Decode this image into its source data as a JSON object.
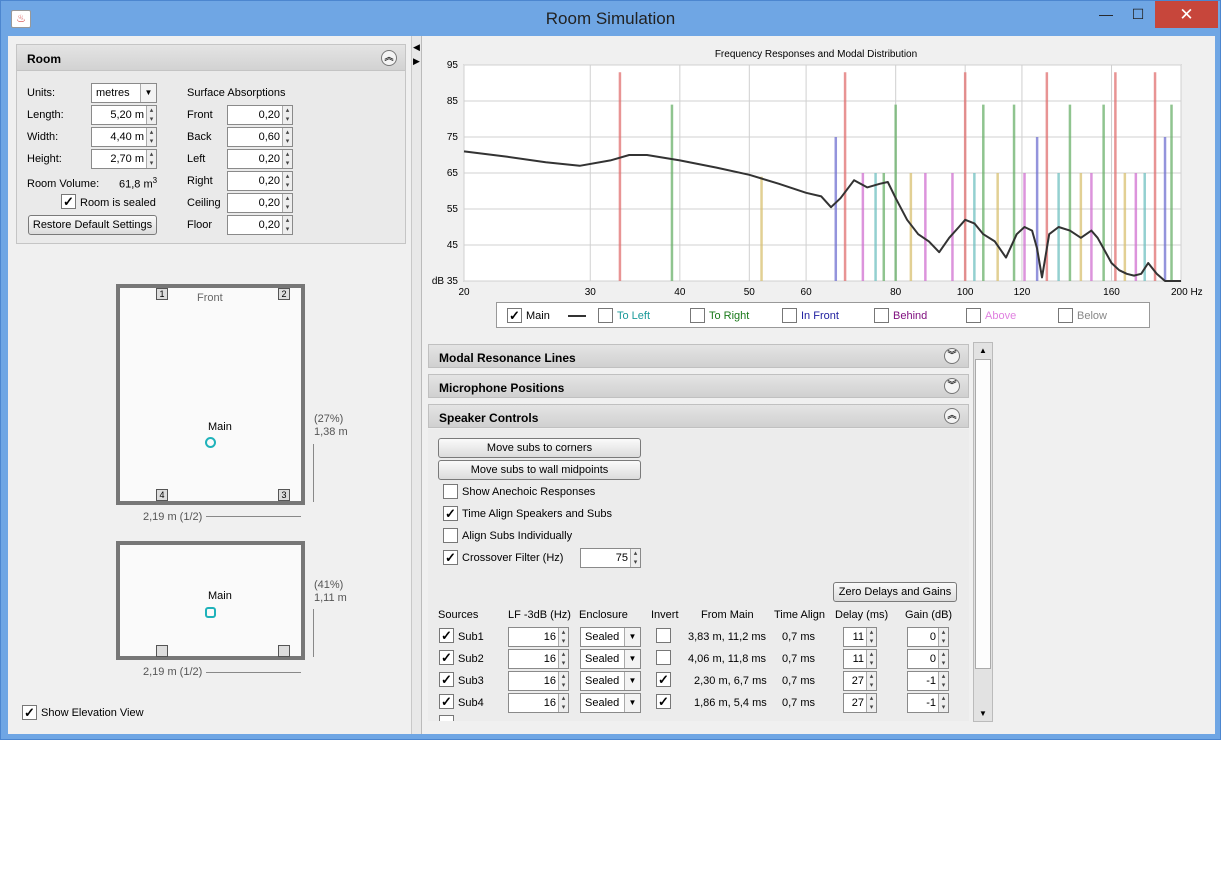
{
  "window": {
    "title": "Room Simulation",
    "minimize": "—",
    "maximize": "☐",
    "close": "✕"
  },
  "room_panel": {
    "title": "Room",
    "units_label": "Units:",
    "units_value": "metres",
    "length_label": "Length:",
    "length_value": "5,20 m",
    "width_label": "Width:",
    "width_value": "4,40 m",
    "height_label": "Height:",
    "height_value": "2,70 m",
    "volume_label": "Room Volume:",
    "volume_value": "61,8 m",
    "volume_sup": "3",
    "sealed_label": "Room is sealed",
    "sealed_checked": true,
    "restore_button": "Restore Default Settings",
    "absorptions_title": "Surface Absorptions",
    "absorptions": [
      {
        "label": "Front",
        "value": "0,20"
      },
      {
        "label": "Back",
        "value": "0,60"
      },
      {
        "label": "Left",
        "value": "0,20"
      },
      {
        "label": "Right",
        "value": "0,20"
      },
      {
        "label": "Ceiling",
        "value": "0,20"
      },
      {
        "label": "Floor",
        "value": "0,20"
      }
    ]
  },
  "plan_view": {
    "front_label": "Front",
    "corners": [
      "1",
      "2",
      "4",
      "3"
    ],
    "mic_label": "Main",
    "right_dim_pct": "(27%)",
    "right_dim": "1,38 m",
    "bottom_dim": "2,19 m (1/2)"
  },
  "elevation_view": {
    "mic_label": "Main",
    "right_dim_pct": "(41%)",
    "right_dim": "1,11 m",
    "bottom_dim": "2,19 m (1/2)",
    "show_label": "Show Elevation View",
    "show_checked": true
  },
  "chart_data": {
    "type": "line",
    "title": "Frequency Responses and Modal Distribution",
    "xscale": "log",
    "xlim": [
      20,
      200
    ],
    "ylim": [
      35,
      95
    ],
    "x_ticks": [
      "20",
      "30",
      "40",
      "50",
      "60",
      "80",
      "100",
      "120",
      "160",
      "200 Hz"
    ],
    "x_tick_values": [
      20,
      30,
      40,
      50,
      60,
      80,
      100,
      120,
      160,
      200
    ],
    "y_ticks": [
      "95",
      "85",
      "75",
      "65",
      "55",
      "45",
      "dB 35"
    ],
    "y_tick_values": [
      95,
      85,
      75,
      65,
      55,
      45,
      35
    ],
    "grid": true,
    "series": [
      {
        "name": "Main",
        "color": "#333333",
        "x": [
          20,
          23,
          26,
          29,
          32,
          34,
          36,
          40,
          45,
          50,
          55,
          60,
          63,
          65,
          67,
          70,
          73,
          76,
          78,
          80,
          83,
          86,
          89,
          92,
          95,
          98,
          100,
          103,
          106,
          110,
          114,
          118,
          121,
          124,
          126,
          128,
          131,
          135,
          140,
          145,
          150,
          153,
          156,
          160,
          164,
          168,
          172,
          176,
          180,
          185,
          190,
          195,
          200
        ],
        "y": [
          71,
          69.5,
          68,
          67,
          68.5,
          70,
          70,
          68.5,
          66.5,
          64.5,
          62,
          59.5,
          58.5,
          55.5,
          58,
          63,
          61,
          62,
          62.5,
          58,
          52,
          48,
          46,
          43,
          47,
          50,
          52,
          51,
          48,
          46,
          41.5,
          48,
          50,
          49,
          44,
          36,
          48,
          50,
          49,
          47,
          49,
          47,
          44,
          40,
          38,
          37,
          36.5,
          37,
          40,
          37,
          35,
          35,
          35
        ]
      }
    ],
    "mode_lines": [
      {
        "x": 33,
        "top": 93,
        "color": "#e07070"
      },
      {
        "x": 39,
        "top": 84,
        "color": "#6ab06a"
      },
      {
        "x": 52,
        "top": 64,
        "color": "#d8c070"
      },
      {
        "x": 66,
        "top": 75,
        "color": "#7070d0"
      },
      {
        "x": 68,
        "top": 93,
        "color": "#e07070"
      },
      {
        "x": 72,
        "top": 65,
        "color": "#d070d0"
      },
      {
        "x": 75,
        "top": 65,
        "color": "#70c0c0"
      },
      {
        "x": 77,
        "top": 65,
        "color": "#6ab06a"
      },
      {
        "x": 80,
        "top": 84,
        "color": "#6ab06a"
      },
      {
        "x": 84,
        "top": 65,
        "color": "#d8c070"
      },
      {
        "x": 88,
        "top": 65,
        "color": "#d070d0"
      },
      {
        "x": 96,
        "top": 65,
        "color": "#d070d0"
      },
      {
        "x": 100,
        "top": 93,
        "color": "#e07070"
      },
      {
        "x": 103,
        "top": 65,
        "color": "#70c0c0"
      },
      {
        "x": 106,
        "top": 84,
        "color": "#6ab06a"
      },
      {
        "x": 111,
        "top": 65,
        "color": "#d8c070"
      },
      {
        "x": 117,
        "top": 84,
        "color": "#6ab06a"
      },
      {
        "x": 121,
        "top": 65,
        "color": "#d070d0"
      },
      {
        "x": 126,
        "top": 75,
        "color": "#7070d0"
      },
      {
        "x": 130,
        "top": 93,
        "color": "#e07070"
      },
      {
        "x": 135,
        "top": 65,
        "color": "#70c0c0"
      },
      {
        "x": 140,
        "top": 84,
        "color": "#6ab06a"
      },
      {
        "x": 145,
        "top": 65,
        "color": "#d8c070"
      },
      {
        "x": 150,
        "top": 65,
        "color": "#d070d0"
      },
      {
        "x": 156,
        "top": 84,
        "color": "#6ab06a"
      },
      {
        "x": 162,
        "top": 93,
        "color": "#e07070"
      },
      {
        "x": 167,
        "top": 65,
        "color": "#d8c070"
      },
      {
        "x": 173,
        "top": 65,
        "color": "#d070d0"
      },
      {
        "x": 178,
        "top": 65,
        "color": "#70c0c0"
      },
      {
        "x": 184,
        "top": 93,
        "color": "#e07070"
      },
      {
        "x": 190,
        "top": 75,
        "color": "#7070d0"
      },
      {
        "x": 194,
        "top": 84,
        "color": "#6ab06a"
      }
    ]
  },
  "legend": [
    {
      "label": "Main",
      "checked": true,
      "color": "#000000"
    },
    {
      "label": "To Left",
      "checked": false,
      "color": "#1a9a9a"
    },
    {
      "label": "To Right",
      "checked": false,
      "color": "#1a7a1a"
    },
    {
      "label": "In Front",
      "checked": false,
      "color": "#2020a0"
    },
    {
      "label": "Behind",
      "checked": false,
      "color": "#801080"
    },
    {
      "label": "Above",
      "checked": false,
      "color": "#e080e0"
    },
    {
      "label": "Below",
      "checked": false,
      "color": "#888888"
    }
  ],
  "sections": {
    "modal": "Modal Resonance Lines",
    "mic": "Microphone Positions",
    "speaker": "Speaker Controls"
  },
  "speaker_controls": {
    "move_corners": "Move subs to corners",
    "move_midpoints": "Move subs to wall midpoints",
    "anechoic_label": "Show Anechoic Responses",
    "anechoic_checked": false,
    "time_align_label": "Time Align Speakers and Subs",
    "time_align_checked": true,
    "align_subs_label": "Align Subs Individually",
    "align_subs_checked": false,
    "crossover_label": "Crossover Filter (Hz)",
    "crossover_checked": true,
    "crossover_value": "75",
    "zero_button": "Zero Delays and Gains",
    "headers": [
      "Sources",
      "LF -3dB (Hz)",
      "Enclosure",
      "Invert",
      "From Main",
      "Time Align",
      "Delay (ms)",
      "Gain (dB)"
    ],
    "rows": [
      {
        "name": "Sub1",
        "checked": true,
        "lf": "16",
        "enclosure": "Sealed",
        "invert": false,
        "from_main": "3,83 m, 11,2 ms",
        "time_align": "0,7 ms",
        "delay": "11",
        "gain": "0"
      },
      {
        "name": "Sub2",
        "checked": true,
        "lf": "16",
        "enclosure": "Sealed",
        "invert": false,
        "from_main": "4,06 m, 11,8 ms",
        "time_align": "0,7 ms",
        "delay": "11",
        "gain": "0"
      },
      {
        "name": "Sub3",
        "checked": true,
        "lf": "16",
        "enclosure": "Sealed",
        "invert": true,
        "from_main": "2,30 m, 6,7 ms",
        "time_align": "0,7 ms",
        "delay": "27",
        "gain": "-1"
      },
      {
        "name": "Sub4",
        "checked": true,
        "lf": "16",
        "enclosure": "Sealed",
        "invert": true,
        "from_main": "1,86 m, 5,4 ms",
        "time_align": "0,7 ms",
        "delay": "27",
        "gain": "-1"
      }
    ]
  }
}
